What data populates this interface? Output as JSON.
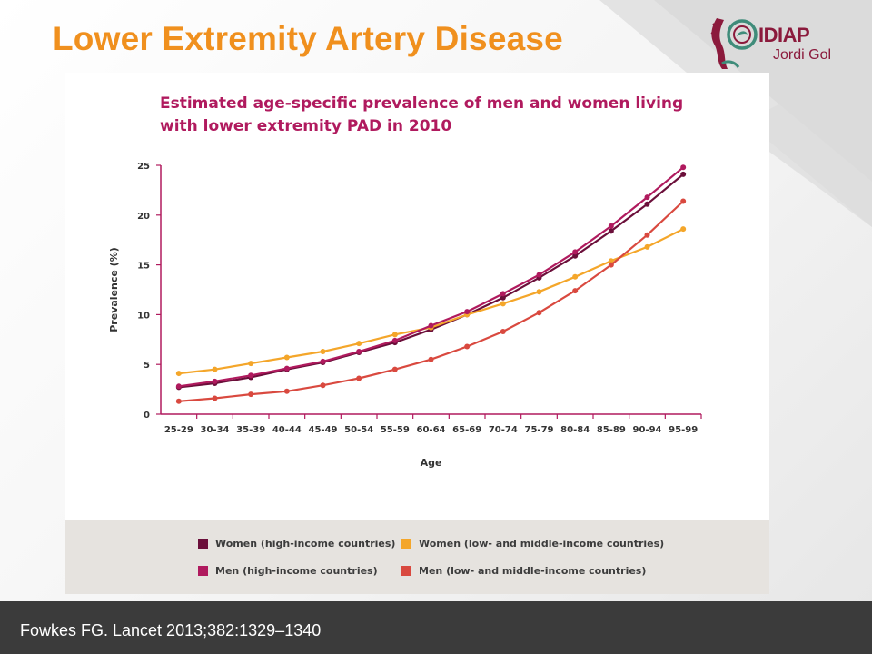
{
  "slide": {
    "title": "Lower Extremity Artery Disease",
    "citation": "Fowkes FG. Lancet 2013;382:1329–1340"
  },
  "logo": {
    "name": "IDIAP",
    "subtitle": "Jordi Gol"
  },
  "chart_data": {
    "type": "line",
    "title": "Estimated age-specific prevalence of men and women living with lower extremity PAD in 2010",
    "xlabel": "Age",
    "ylabel": "Prevalence (%)",
    "ylim": [
      0,
      25
    ],
    "yticks": [
      0,
      5,
      10,
      15,
      20,
      25
    ],
    "grid": false,
    "legend_placement": "bottom",
    "categories": [
      "25-29",
      "30-34",
      "35-39",
      "40-44",
      "45-49",
      "50-54",
      "55-59",
      "60-64",
      "65-69",
      "70-74",
      "75-79",
      "80-84",
      "85-89",
      "90-94",
      "95-99"
    ],
    "series": [
      {
        "name": "Women (high-income countries)",
        "color": "#6b0f3a",
        "values": [
          2.7,
          3.1,
          3.7,
          4.5,
          5.2,
          6.2,
          7.2,
          8.5,
          10.0,
          11.7,
          13.7,
          15.9,
          18.4,
          21.1,
          24.1
        ]
      },
      {
        "name": "Women (low- and middle-income countries)",
        "color": "#f4a62a",
        "values": [
          4.1,
          4.5,
          5.1,
          5.7,
          6.3,
          7.1,
          8.0,
          8.7,
          10.0,
          11.1,
          12.3,
          13.8,
          15.4,
          16.8,
          18.6
        ]
      },
      {
        "name": "Men (high-income countries)",
        "color": "#b01a5e",
        "values": [
          2.8,
          3.3,
          3.9,
          4.6,
          5.3,
          6.3,
          7.4,
          8.9,
          10.3,
          12.1,
          14.0,
          16.3,
          18.9,
          21.8,
          24.8
        ]
      },
      {
        "name": "Men (low- and middle-income countries)",
        "color": "#d9493f",
        "values": [
          1.3,
          1.6,
          2.0,
          2.3,
          2.9,
          3.6,
          4.5,
          5.5,
          6.8,
          8.3,
          10.2,
          12.4,
          15.0,
          18.0,
          21.4
        ]
      }
    ]
  }
}
